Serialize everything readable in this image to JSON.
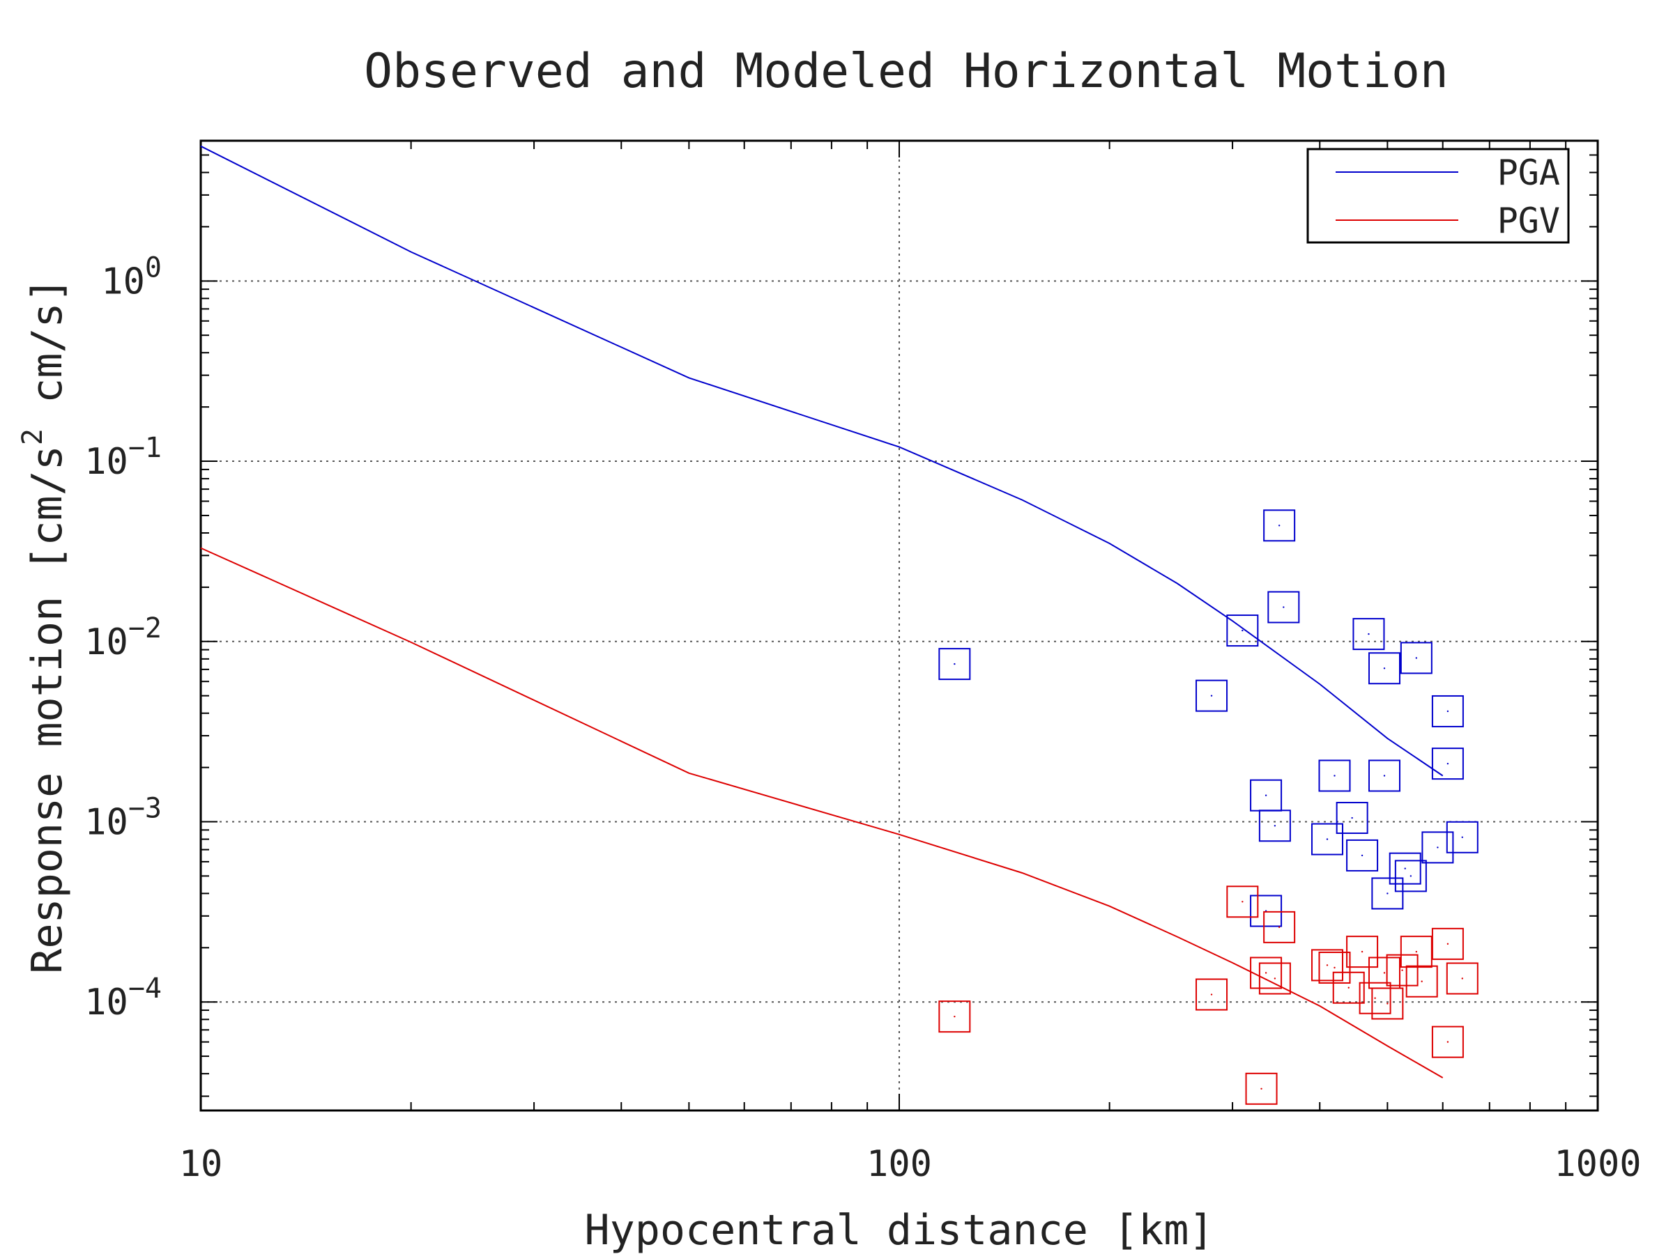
{
  "chart_data": {
    "type": "line",
    "title": "Observed and Modeled Horizontal Motion",
    "xlabel": "Hypocentral distance [km]",
    "ylabel": "Response motion [cm/s² cm/s]",
    "ylabel_parts": {
      "main": "Response motion [cm/s",
      "exp": "2",
      "rest": " cm/s]"
    },
    "xscale": "log",
    "yscale": "log",
    "xlim": [
      10,
      1000
    ],
    "ylim": [
      2.5e-05,
      6
    ],
    "xticks": [
      {
        "value": 10,
        "label": "10"
      },
      {
        "value": 100,
        "label": "100"
      },
      {
        "value": 1000,
        "label": "1000"
      }
    ],
    "yticks": [
      {
        "value": 1,
        "base": "10",
        "exp": "0"
      },
      {
        "value": 0.1,
        "base": "10",
        "exp": "−1"
      },
      {
        "value": 0.01,
        "base": "10",
        "exp": "−2"
      },
      {
        "value": 0.001,
        "base": "10",
        "exp": "−3"
      },
      {
        "value": 0.0001,
        "base": "10",
        "exp": "−4"
      }
    ],
    "grid": true,
    "legend_position": "top-right",
    "series": [
      {
        "name": "PGA",
        "color": "#0000cc",
        "curve": [
          [
            10,
            5.6
          ],
          [
            20,
            1.45
          ],
          [
            50,
            0.29
          ],
          [
            100,
            0.12
          ],
          [
            150,
            0.061
          ],
          [
            200,
            0.035
          ],
          [
            250,
            0.021
          ],
          [
            300,
            0.013
          ],
          [
            400,
            0.0058
          ],
          [
            500,
            0.0029
          ],
          [
            600,
            0.0018
          ]
        ],
        "points": [
          [
            120,
            0.0075
          ],
          [
            280,
            0.005
          ],
          [
            310,
            0.0115
          ],
          [
            350,
            0.044
          ],
          [
            355,
            0.0155
          ],
          [
            470,
            0.011
          ],
          [
            495,
            0.0071
          ],
          [
            550,
            0.0081
          ],
          [
            610,
            0.0041
          ],
          [
            610,
            0.0021
          ],
          [
            420,
            0.0018
          ],
          [
            495,
            0.0018
          ],
          [
            335,
            0.0014
          ],
          [
            345,
            0.00095
          ],
          [
            445,
            0.00105
          ],
          [
            410,
            0.0008
          ],
          [
            460,
            0.00065
          ],
          [
            590,
            0.00072
          ],
          [
            640,
            0.00082
          ],
          [
            530,
            0.00055
          ],
          [
            540,
            0.0005
          ],
          [
            500,
            0.0004
          ],
          [
            335,
            0.00032
          ]
        ]
      },
      {
        "name": "PGV",
        "color": "#dd0000",
        "curve": [
          [
            10,
            0.033
          ],
          [
            20,
            0.0099
          ],
          [
            50,
            0.00186
          ],
          [
            100,
            0.00085
          ],
          [
            150,
            0.00052
          ],
          [
            200,
            0.00034
          ],
          [
            250,
            0.00023
          ],
          [
            300,
            0.000165
          ],
          [
            400,
            9.5e-05
          ],
          [
            500,
            5.7e-05
          ],
          [
            600,
            3.8e-05
          ]
        ],
        "points": [
          [
            120,
            8.3e-05
          ],
          [
            280,
            0.00011
          ],
          [
            310,
            0.00036
          ],
          [
            350,
            0.00026
          ],
          [
            330,
            3.3e-05
          ],
          [
            335,
            0.000145
          ],
          [
            345,
            0.000135
          ],
          [
            410,
            0.00016
          ],
          [
            420,
            0.000155
          ],
          [
            440,
            0.00012
          ],
          [
            460,
            0.00019
          ],
          [
            480,
            0.000105
          ],
          [
            495,
            0.000145
          ],
          [
            500,
            9.8e-05
          ],
          [
            525,
            0.00015
          ],
          [
            550,
            0.00019
          ],
          [
            560,
            0.00013
          ],
          [
            610,
            0.00021
          ],
          [
            640,
            0.000135
          ],
          [
            610,
            6e-05
          ]
        ]
      }
    ]
  }
}
